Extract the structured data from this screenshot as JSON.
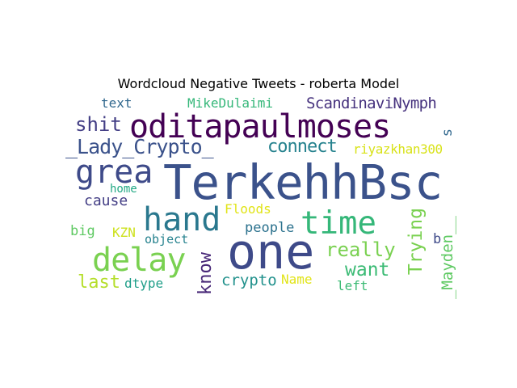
{
  "title": "Wordcloud Negative Tweets - roberta Model",
  "words": [
    {
      "text": "TerkehhBsc",
      "color": "#3b528b"
    },
    {
      "text": "oditapaulmoses",
      "color": "#440154"
    },
    {
      "text": "one",
      "color": "#3e4a89"
    },
    {
      "text": "grea",
      "color": "#3e4a89"
    },
    {
      "text": "hand",
      "color": "#2a788e"
    },
    {
      "text": "time",
      "color": "#35b779"
    },
    {
      "text": "delay",
      "color": "#7ad151"
    },
    {
      "text": "shit",
      "color": "#433e85"
    },
    {
      "text": "_Lady_Crypto_",
      "color": "#3b528b"
    },
    {
      "text": "connect",
      "color": "#26828e"
    },
    {
      "text": "ScandinaviNymph",
      "color": "#46327e"
    },
    {
      "text": "MikeDulaimi",
      "color": "#35b779"
    },
    {
      "text": "text",
      "color": "#31688e"
    },
    {
      "text": "riyazkhan300",
      "color": "#d8e219"
    },
    {
      "text": "cause",
      "color": "#433e85"
    },
    {
      "text": "home",
      "color": "#22a884"
    },
    {
      "text": "Floods",
      "color": "#e1e418"
    },
    {
      "text": "people",
      "color": "#2c728e"
    },
    {
      "text": "really",
      "color": "#7ad151"
    },
    {
      "text": "want",
      "color": "#3cbb75"
    },
    {
      "text": "Trying",
      "color": "#7ad151"
    },
    {
      "text": "big",
      "color": "#5ec962"
    },
    {
      "text": "KZN",
      "color": "#cde11d"
    },
    {
      "text": "object",
      "color": "#26828e"
    },
    {
      "text": "know",
      "color": "#482878"
    },
    {
      "text": "last",
      "color": "#b5de2b"
    },
    {
      "text": "dtype",
      "color": "#1f9e89"
    },
    {
      "text": "crypto",
      "color": "#21918c"
    },
    {
      "text": "Name",
      "color": "#e1e418"
    },
    {
      "text": "left",
      "color": "#3cbb75"
    },
    {
      "text": "b",
      "color": "#3e4a89"
    },
    {
      "text": "_Mayden__",
      "color": "#5ec962"
    },
    {
      "text": "s",
      "color": "#31688e"
    }
  ]
}
